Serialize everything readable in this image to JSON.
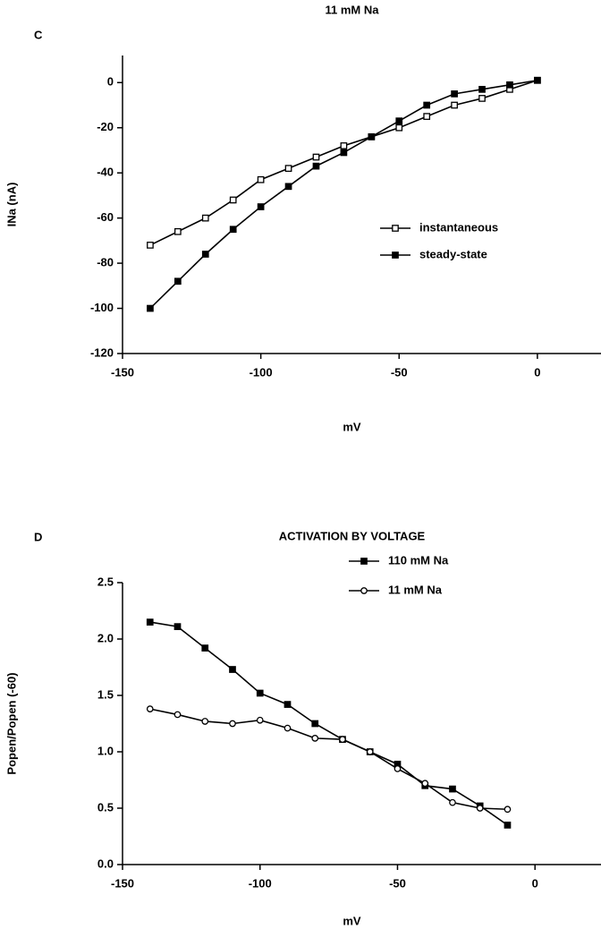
{
  "chart_data": [
    {
      "type": "line",
      "panel_label": "C",
      "title": "11 mM Na",
      "xlabel": "mV",
      "ylabel": "INa  (nA)",
      "x": [
        -140,
        -130,
        -120,
        -110,
        -100,
        -90,
        -80,
        -70,
        -60,
        -50,
        -40,
        -30,
        -20,
        -10,
        0
      ],
      "series": [
        {
          "name": "instantaneous",
          "color": "#000000",
          "marker": "square-open",
          "values": [
            -72,
            -66,
            -60,
            -52,
            -43,
            -38,
            -33,
            -28,
            -24,
            -20,
            -15,
            -10,
            -7,
            -3,
            1
          ]
        },
        {
          "name": "steady-state",
          "color": "#000000",
          "marker": "square-filled",
          "values": [
            -100,
            -88,
            -76,
            -65,
            -55,
            -46,
            -37,
            -31,
            -24,
            -17,
            -10,
            -5,
            -3,
            -1,
            1
          ]
        }
      ],
      "xlim": [
        -150,
        23
      ],
      "xticks": [
        -150,
        -100,
        -50,
        0
      ],
      "ylim": [
        -120,
        12
      ],
      "yticks": [
        -120,
        -100,
        -80,
        -60,
        -40,
        -20,
        0
      ]
    },
    {
      "type": "line",
      "panel_label": "D",
      "title": "ACTIVATION BY VOLTAGE",
      "xlabel": "mV",
      "ylabel": "Popen/Popen   (-60)",
      "x": [
        -140,
        -130,
        -120,
        -110,
        -100,
        -90,
        -80,
        -70,
        -60,
        -50,
        -40,
        -30,
        -20,
        -10
      ],
      "series": [
        {
          "name": "110 mM Na",
          "color": "#000000",
          "marker": "square-filled",
          "values": [
            2.15,
            2.11,
            1.92,
            1.73,
            1.52,
            1.42,
            1.25,
            1.11,
            1.0,
            0.89,
            0.7,
            0.67,
            0.52,
            0.35
          ]
        },
        {
          "name": "11 mM Na",
          "color": "#000000",
          "marker": "circle-open",
          "values": [
            1.38,
            1.33,
            1.27,
            1.25,
            1.28,
            1.21,
            1.12,
            1.11,
            1.0,
            0.85,
            0.72,
            0.55,
            0.5,
            0.49
          ]
        }
      ],
      "xlim": [
        -150,
        24
      ],
      "xticks": [
        -150,
        -100,
        -50,
        0
      ],
      "ylim": [
        0,
        2.5
      ],
      "yticks": [
        {
          "value": 0,
          "label": "0.0"
        },
        {
          "value": 0.5,
          "label": "0.5"
        },
        {
          "value": 1,
          "label": "1.0"
        },
        {
          "value": 1.5,
          "label": "1.5"
        },
        {
          "value": 2,
          "label": "2.0"
        },
        {
          "value": 2.5,
          "label": "2.5"
        }
      ]
    }
  ]
}
